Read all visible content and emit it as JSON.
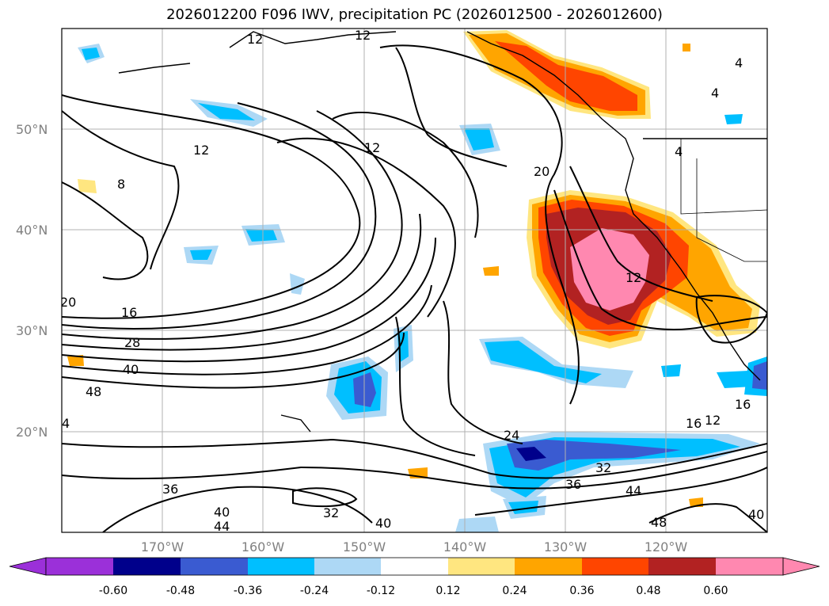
{
  "title": "2026012200 F096 IWV, precipitation PC (2026012500 - 2026012600)",
  "map": {
    "lat_labels": [
      "50°N",
      "40°N",
      "30°N",
      "20°N"
    ],
    "lon_labels": [
      "170°W",
      "160°W",
      "150°W",
      "140°W",
      "130°W",
      "120°W"
    ],
    "iwv_contour_labels": [
      "12",
      "12",
      "12",
      "12",
      "8",
      "4",
      "4",
      "4",
      "20",
      "20",
      "16",
      "28",
      "40",
      "48",
      "4",
      "12",
      "16",
      "24",
      "32",
      "36",
      "36",
      "32",
      "44",
      "48",
      "40",
      "40",
      "44",
      "12",
      "16",
      "40"
    ]
  },
  "colorbar": {
    "ticks": [
      "-0.60",
      "-0.48",
      "-0.36",
      "-0.24",
      "-0.12",
      "0.12",
      "0.24",
      "0.36",
      "0.48",
      "0.60"
    ],
    "colors": [
      "#9b30d9",
      "#00008b",
      "#3a5bd1",
      "#00bfff",
      "#add8f5",
      "#ffffff",
      "#ffe680",
      "#ffa500",
      "#ff4500",
      "#b22222",
      "#ff88b0"
    ]
  }
}
